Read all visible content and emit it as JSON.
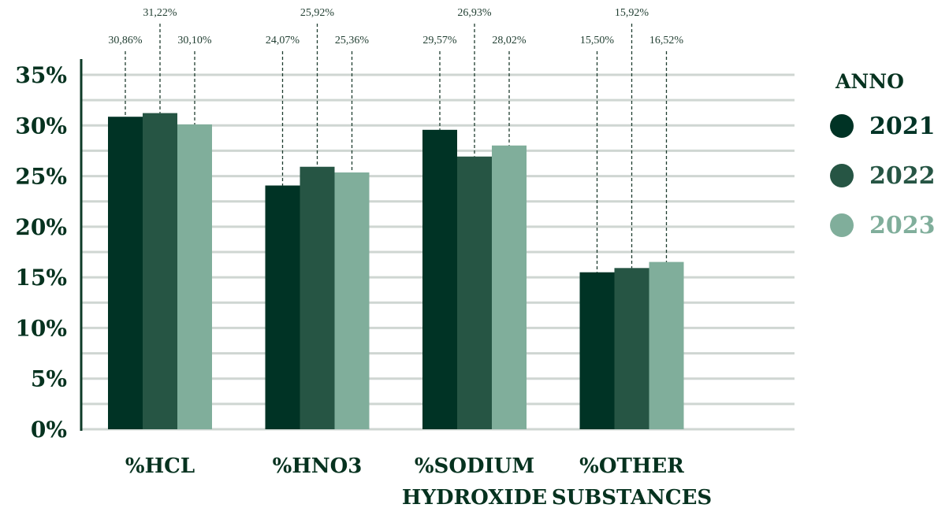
{
  "chart_data": {
    "type": "bar",
    "categories": [
      [
        "%HCL"
      ],
      [
        "%HNO3"
      ],
      [
        "%SODIUM",
        "HYDROXIDE"
      ],
      [
        "%OTHER",
        "SUBSTANCES"
      ]
    ],
    "series": [
      {
        "name": "2021",
        "color": "#003325",
        "values": [
          30.86,
          24.07,
          29.57,
          15.5
        ],
        "labels": [
          "30,86%",
          "24,07%",
          "29,57%",
          "15,50%"
        ]
      },
      {
        "name": "2022",
        "color": "#265544",
        "values": [
          31.22,
          25.92,
          26.93,
          15.92
        ],
        "labels": [
          "31,22%",
          "25,92%",
          "26,93%",
          "15,92%"
        ]
      },
      {
        "name": "2023",
        "color": "#80ae9b",
        "values": [
          30.1,
          25.36,
          28.02,
          16.52
        ],
        "labels": [
          "30,10%",
          "25,36%",
          "28,02%",
          "16,52%"
        ]
      }
    ],
    "yticks": [
      0,
      5,
      10,
      15,
      20,
      25,
      30,
      35
    ],
    "ytick_labels": [
      "0%",
      "5%",
      "10%",
      "15%",
      "20%",
      "25%",
      "30%",
      "35%"
    ],
    "ylim": [
      0,
      35
    ],
    "grid": true,
    "legend": {
      "title": "ANNO",
      "position": "right"
    }
  }
}
